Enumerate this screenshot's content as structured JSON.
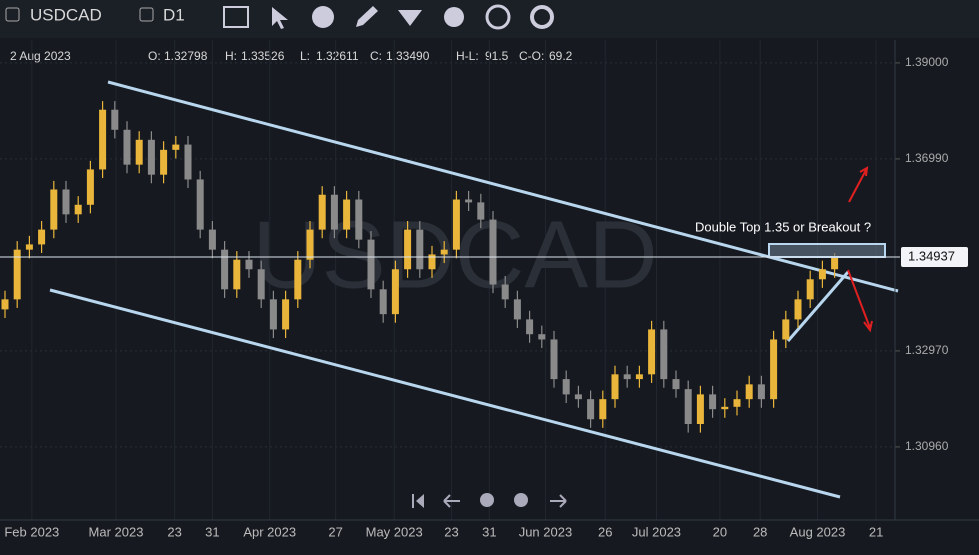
{
  "toolbar": {
    "symbol": "USDCAD",
    "timeframe": "D1"
  },
  "info": {
    "date": "2 Aug 2023",
    "fields": [
      {
        "label": "O:",
        "value": "1.32798"
      },
      {
        "label": "H:",
        "value": "1.33526"
      },
      {
        "label": "L:",
        "value": "1.32611"
      },
      {
        "label": "C:",
        "value": "1.33490"
      },
      {
        "label": "H-L:",
        "value": "91.5"
      },
      {
        "label": "C-O:",
        "value": "69.2"
      }
    ]
  },
  "chart_data": {
    "type": "candlestick",
    "watermark": "USDCAD",
    "annotation": "Double Top 1.35  or Breakout ?",
    "up_color": "#e9b53a",
    "down_color": "#8a8a8a",
    "ylim": [
      1.2943,
      1.3948
    ],
    "yticks": [
      {
        "value": 1.39,
        "label": "1.39000"
      },
      {
        "value": 1.3699,
        "label": "1.36990"
      },
      {
        "value": 1.3297,
        "label": "1.32970"
      },
      {
        "value": 1.3096,
        "label": "1.30960"
      }
    ],
    "last_price": {
      "value": 1.34937,
      "label": "1.34937"
    },
    "xticks": [
      {
        "value": 2.2,
        "label": "Feb 2023"
      },
      {
        "value": 9.1,
        "label": "Mar 2023"
      },
      {
        "value": 13.9,
        "label": "23"
      },
      {
        "value": 17,
        "label": "31"
      },
      {
        "value": 21.7,
        "label": "Apr 2023"
      },
      {
        "value": 27.1,
        "label": "27"
      },
      {
        "value": 31.9,
        "label": "May 2023"
      },
      {
        "value": 36.6,
        "label": "23"
      },
      {
        "value": 39.7,
        "label": "31"
      },
      {
        "value": 44.3,
        "label": "Jun 2023"
      },
      {
        "value": 49.2,
        "label": "26"
      },
      {
        "value": 53.4,
        "label": "Jul 2023"
      },
      {
        "value": 58.6,
        "label": "20"
      },
      {
        "value": 61.9,
        "label": "28"
      },
      {
        "value": 66.6,
        "label": "Aug 2023"
      },
      {
        "value": 71.4,
        "label": "21"
      }
    ],
    "candles": [
      [
        1.3384,
        1.3423,
        1.3366,
        1.3405
      ],
      [
        1.3405,
        1.3527,
        1.3387,
        1.3509
      ],
      [
        1.3509,
        1.3538,
        1.3491,
        1.352
      ],
      [
        1.352,
        1.3569,
        1.3502,
        1.3551
      ],
      [
        1.3551,
        1.3653,
        1.3533,
        1.3635
      ],
      [
        1.3635,
        1.3653,
        1.3565,
        1.3583
      ],
      [
        1.3583,
        1.3621,
        1.3565,
        1.3603
      ],
      [
        1.3603,
        1.3695,
        1.3585,
        1.3677
      ],
      [
        1.3677,
        1.382,
        1.3659,
        1.3802
      ],
      [
        1.3802,
        1.382,
        1.3742,
        1.376
      ],
      [
        1.376,
        1.3778,
        1.3669,
        1.3687
      ],
      [
        1.3687,
        1.3757,
        1.3669,
        1.3739
      ],
      [
        1.3739,
        1.3757,
        1.3648,
        1.3666
      ],
      [
        1.3666,
        1.3736,
        1.3648,
        1.3718
      ],
      [
        1.3718,
        1.3747,
        1.37,
        1.3729
      ],
      [
        1.3729,
        1.3747,
        1.3638,
        1.3656
      ],
      [
        1.3656,
        1.3674,
        1.3533,
        1.3551
      ],
      [
        1.3551,
        1.3569,
        1.3491,
        1.3509
      ],
      [
        1.3509,
        1.3527,
        1.3408,
        1.3426
      ],
      [
        1.3426,
        1.3506,
        1.3408,
        1.3488
      ],
      [
        1.3488,
        1.3506,
        1.345,
        1.3468
      ],
      [
        1.3468,
        1.3486,
        1.3387,
        1.3405
      ],
      [
        1.3405,
        1.3423,
        1.3324,
        1.3342
      ],
      [
        1.3342,
        1.3423,
        1.3324,
        1.3405
      ],
      [
        1.3405,
        1.3506,
        1.3387,
        1.3488
      ],
      [
        1.3488,
        1.3569,
        1.347,
        1.3551
      ],
      [
        1.3551,
        1.3642,
        1.3533,
        1.3624
      ],
      [
        1.3624,
        1.3642,
        1.3533,
        1.3551
      ],
      [
        1.3551,
        1.3632,
        1.3533,
        1.3614
      ],
      [
        1.3614,
        1.3632,
        1.3512,
        1.353
      ],
      [
        1.353,
        1.3548,
        1.3408,
        1.3426
      ],
      [
        1.3426,
        1.3444,
        1.3356,
        1.3374
      ],
      [
        1.3374,
        1.3486,
        1.3356,
        1.3468
      ],
      [
        1.3468,
        1.3569,
        1.345,
        1.3551
      ],
      [
        1.3551,
        1.3569,
        1.345,
        1.3468
      ],
      [
        1.3468,
        1.3517,
        1.345,
        1.3499
      ],
      [
        1.3499,
        1.3527,
        1.3481,
        1.3509
      ],
      [
        1.3509,
        1.3632,
        1.3491,
        1.3614
      ],
      [
        1.3614,
        1.3632,
        1.359,
        1.3608
      ],
      [
        1.3608,
        1.3626,
        1.3554,
        1.3572
      ],
      [
        1.3572,
        1.359,
        1.3418,
        1.3436
      ],
      [
        1.3436,
        1.3454,
        1.3387,
        1.3405
      ],
      [
        1.3405,
        1.3423,
        1.3345,
        1.3363
      ],
      [
        1.3363,
        1.3381,
        1.3314,
        1.3332
      ],
      [
        1.3332,
        1.335,
        1.3303,
        1.3321
      ],
      [
        1.3321,
        1.3339,
        1.322,
        1.3238
      ],
      [
        1.3238,
        1.3256,
        1.3188,
        1.3206
      ],
      [
        1.3206,
        1.3224,
        1.3178,
        1.3196
      ],
      [
        1.3196,
        1.3214,
        1.3136,
        1.3154
      ],
      [
        1.3154,
        1.3214,
        1.3136,
        1.3196
      ],
      [
        1.3196,
        1.3266,
        1.3178,
        1.3248
      ],
      [
        1.3248,
        1.3266,
        1.322,
        1.3238
      ],
      [
        1.3238,
        1.3266,
        1.322,
        1.3248
      ],
      [
        1.3248,
        1.336,
        1.323,
        1.3342
      ],
      [
        1.3342,
        1.336,
        1.322,
        1.3238
      ],
      [
        1.3238,
        1.3256,
        1.3199,
        1.3217
      ],
      [
        1.3217,
        1.3235,
        1.3126,
        1.3144
      ],
      [
        1.3144,
        1.3224,
        1.3126,
        1.3206
      ],
      [
        1.3206,
        1.3224,
        1.3157,
        1.3175
      ],
      [
        1.3175,
        1.3198,
        1.3157,
        1.318
      ],
      [
        1.318,
        1.3214,
        1.3162,
        1.3196
      ],
      [
        1.3196,
        1.3245,
        1.3178,
        1.3227
      ],
      [
        1.3227,
        1.3245,
        1.3178,
        1.3196
      ],
      [
        1.3196,
        1.3339,
        1.3178,
        1.3321
      ],
      [
        1.3321,
        1.3381,
        1.3303,
        1.3363
      ],
      [
        1.3363,
        1.3423,
        1.3345,
        1.3405
      ],
      [
        1.3405,
        1.3465,
        1.3387,
        1.3447
      ],
      [
        1.3447,
        1.3486,
        1.3429,
        1.3468
      ],
      [
        1.3468,
        1.3502,
        1.345,
        1.34937
      ]
    ]
  }
}
